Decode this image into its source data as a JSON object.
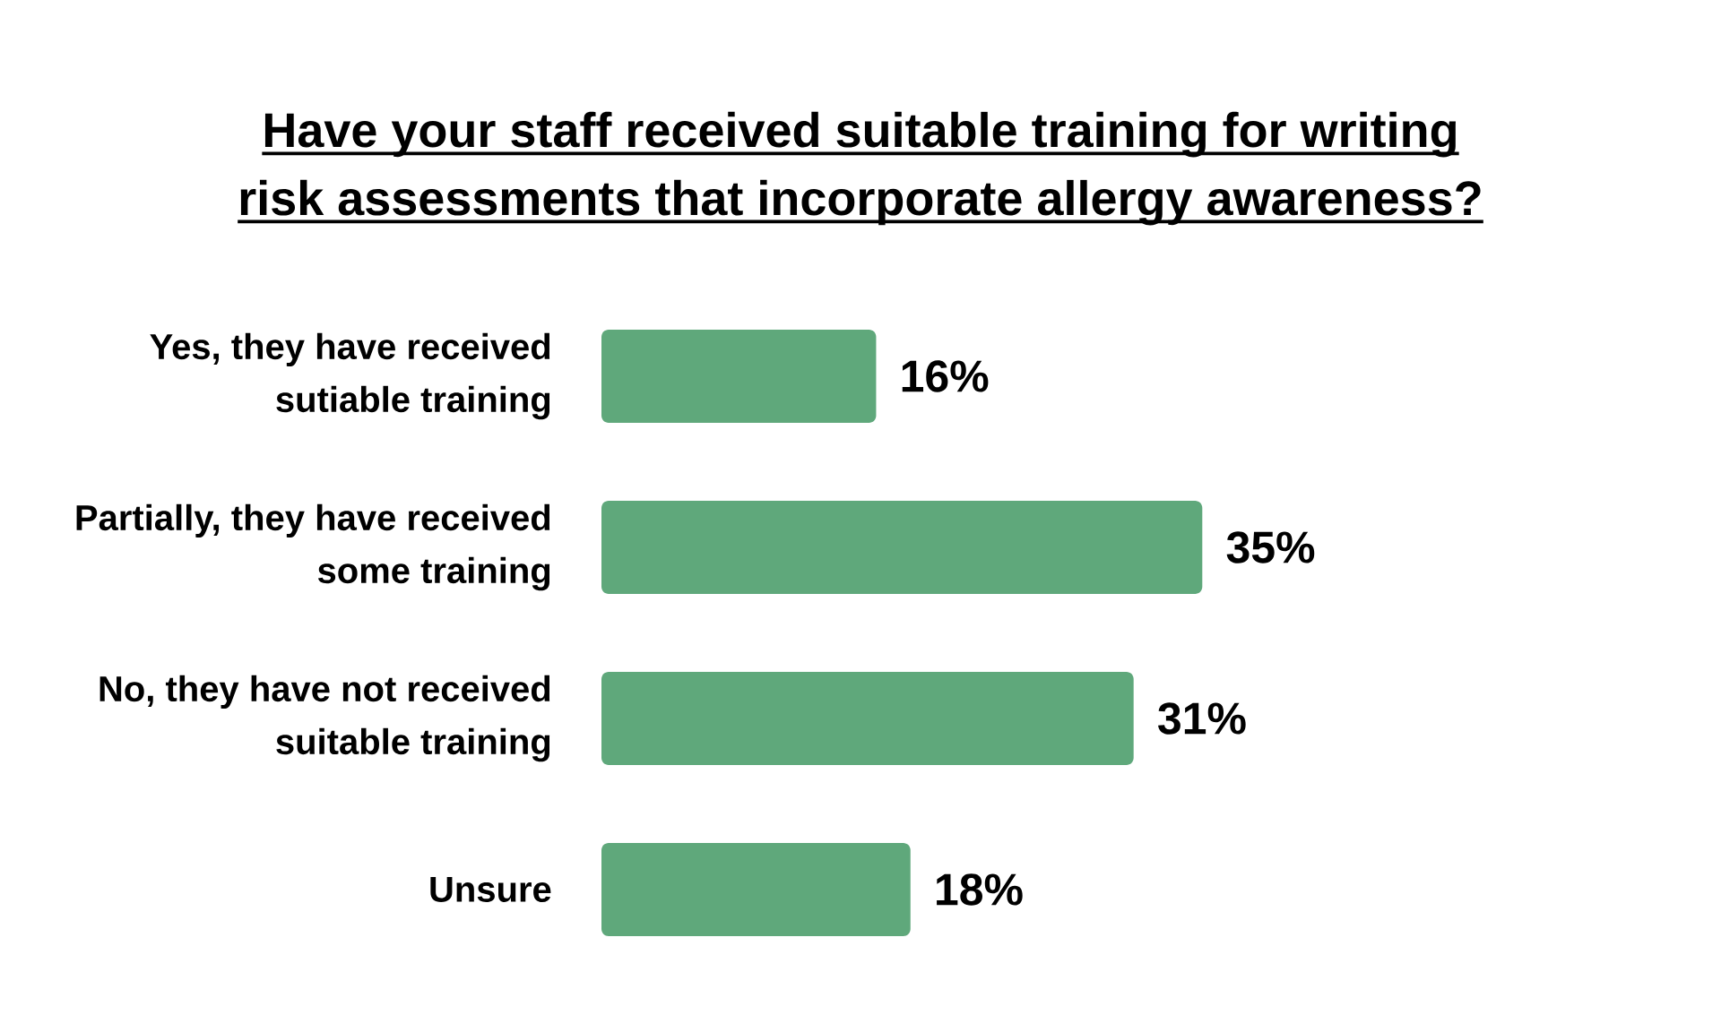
{
  "chart_data": {
    "type": "bar",
    "orientation": "horizontal",
    "title": "Have your staff received suitable training for writing risk assessments that incorporate allergy awareness?",
    "categories": [
      "Yes, they have received sutiable training",
      "Partially, they have received some training",
      "No, they have not received suitable training",
      "Unsure"
    ],
    "values": [
      16,
      35,
      31,
      18
    ],
    "value_labels": [
      "16%",
      "35%",
      "31%",
      "18%"
    ],
    "color": "#5fa87b",
    "tick_labels": "y"
  }
}
